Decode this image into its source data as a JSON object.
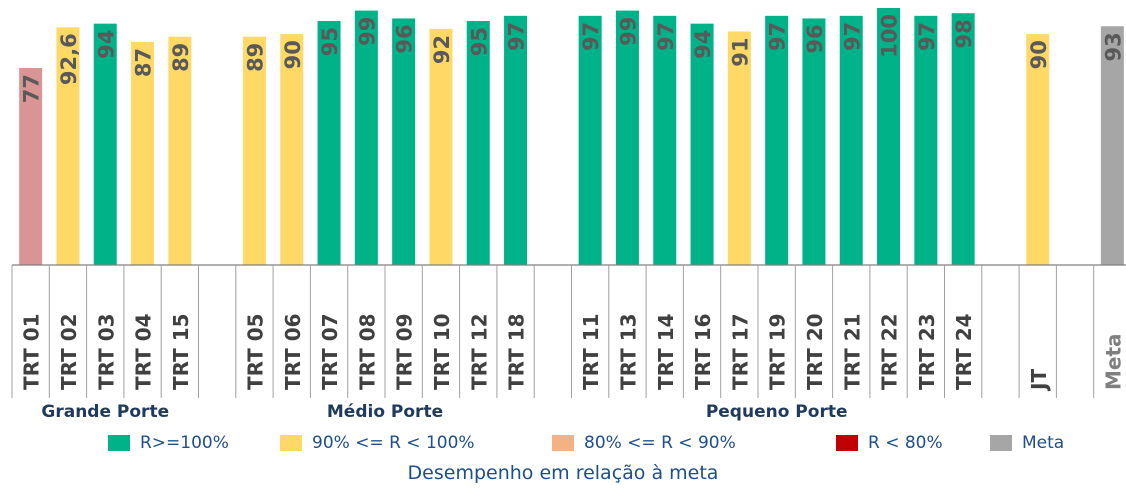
{
  "chart_data": {
    "type": "bar",
    "title": "",
    "subtitle": "Desempenho em relação à meta",
    "ylim": [
      0,
      100
    ],
    "categories": [
      "TRT 01",
      "TRT 02",
      "TRT 03",
      "TRT 04",
      "TRT 15",
      "",
      "TRT 05",
      "TRT 06",
      "TRT 07",
      "TRT 08",
      "TRT 09",
      "TRT 10",
      "TRT 12",
      "TRT 18",
      "",
      "TRT 11",
      "TRT 13",
      "TRT 14",
      "TRT 16",
      "TRT 17",
      "TRT 19",
      "TRT 20",
      "TRT 21",
      "TRT 22",
      "TRT 23",
      "TRT 24",
      "",
      "JT",
      "",
      "Meta"
    ],
    "values": [
      77,
      92.6,
      94,
      87,
      89,
      null,
      89,
      90,
      95,
      99,
      96,
      92,
      95,
      97,
      null,
      97,
      99,
      97,
      94,
      91,
      97,
      96,
      97,
      100,
      97,
      98,
      null,
      90,
      null,
      93
    ],
    "value_labels": [
      "77",
      "92,6",
      "94",
      "87",
      "89",
      "",
      "89",
      "90",
      "95",
      "99",
      "96",
      "92",
      "95",
      "97",
      "",
      "97",
      "99",
      "97",
      "94",
      "91",
      "97",
      "96",
      "97",
      "100",
      "97",
      "98",
      "",
      "90",
      "",
      "93"
    ],
    "bar_classes": [
      "r80",
      "y",
      "g",
      "y",
      "y",
      "",
      "y",
      "y",
      "g",
      "g",
      "g",
      "y",
      "g",
      "g",
      "",
      "g",
      "g",
      "g",
      "g",
      "y",
      "g",
      "g",
      "g",
      "g",
      "g",
      "g",
      "",
      "y",
      "",
      "meta"
    ],
    "groups": [
      {
        "label": "Grande Porte",
        "start": 0,
        "end": 4
      },
      {
        "label": "Médio Porte",
        "start": 6,
        "end": 13
      },
      {
        "label": "Pequeno Porte",
        "start": 15,
        "end": 25
      }
    ],
    "legend": [
      {
        "class": "g",
        "label": "R>=100%"
      },
      {
        "class": "y",
        "label": "90% <= R < 100%"
      },
      {
        "class": "r90",
        "label": "80% <= R < 90%"
      },
      {
        "class": "r80",
        "label": "R < 80%"
      },
      {
        "class": "meta",
        "label": "Meta"
      }
    ],
    "colors": {
      "g": "#00b288",
      "y": "#ffd966",
      "r90": "#f4b183",
      "r80": "#c00000",
      "r80_bar": "#d99594",
      "meta": "#a6a6a6"
    }
  }
}
